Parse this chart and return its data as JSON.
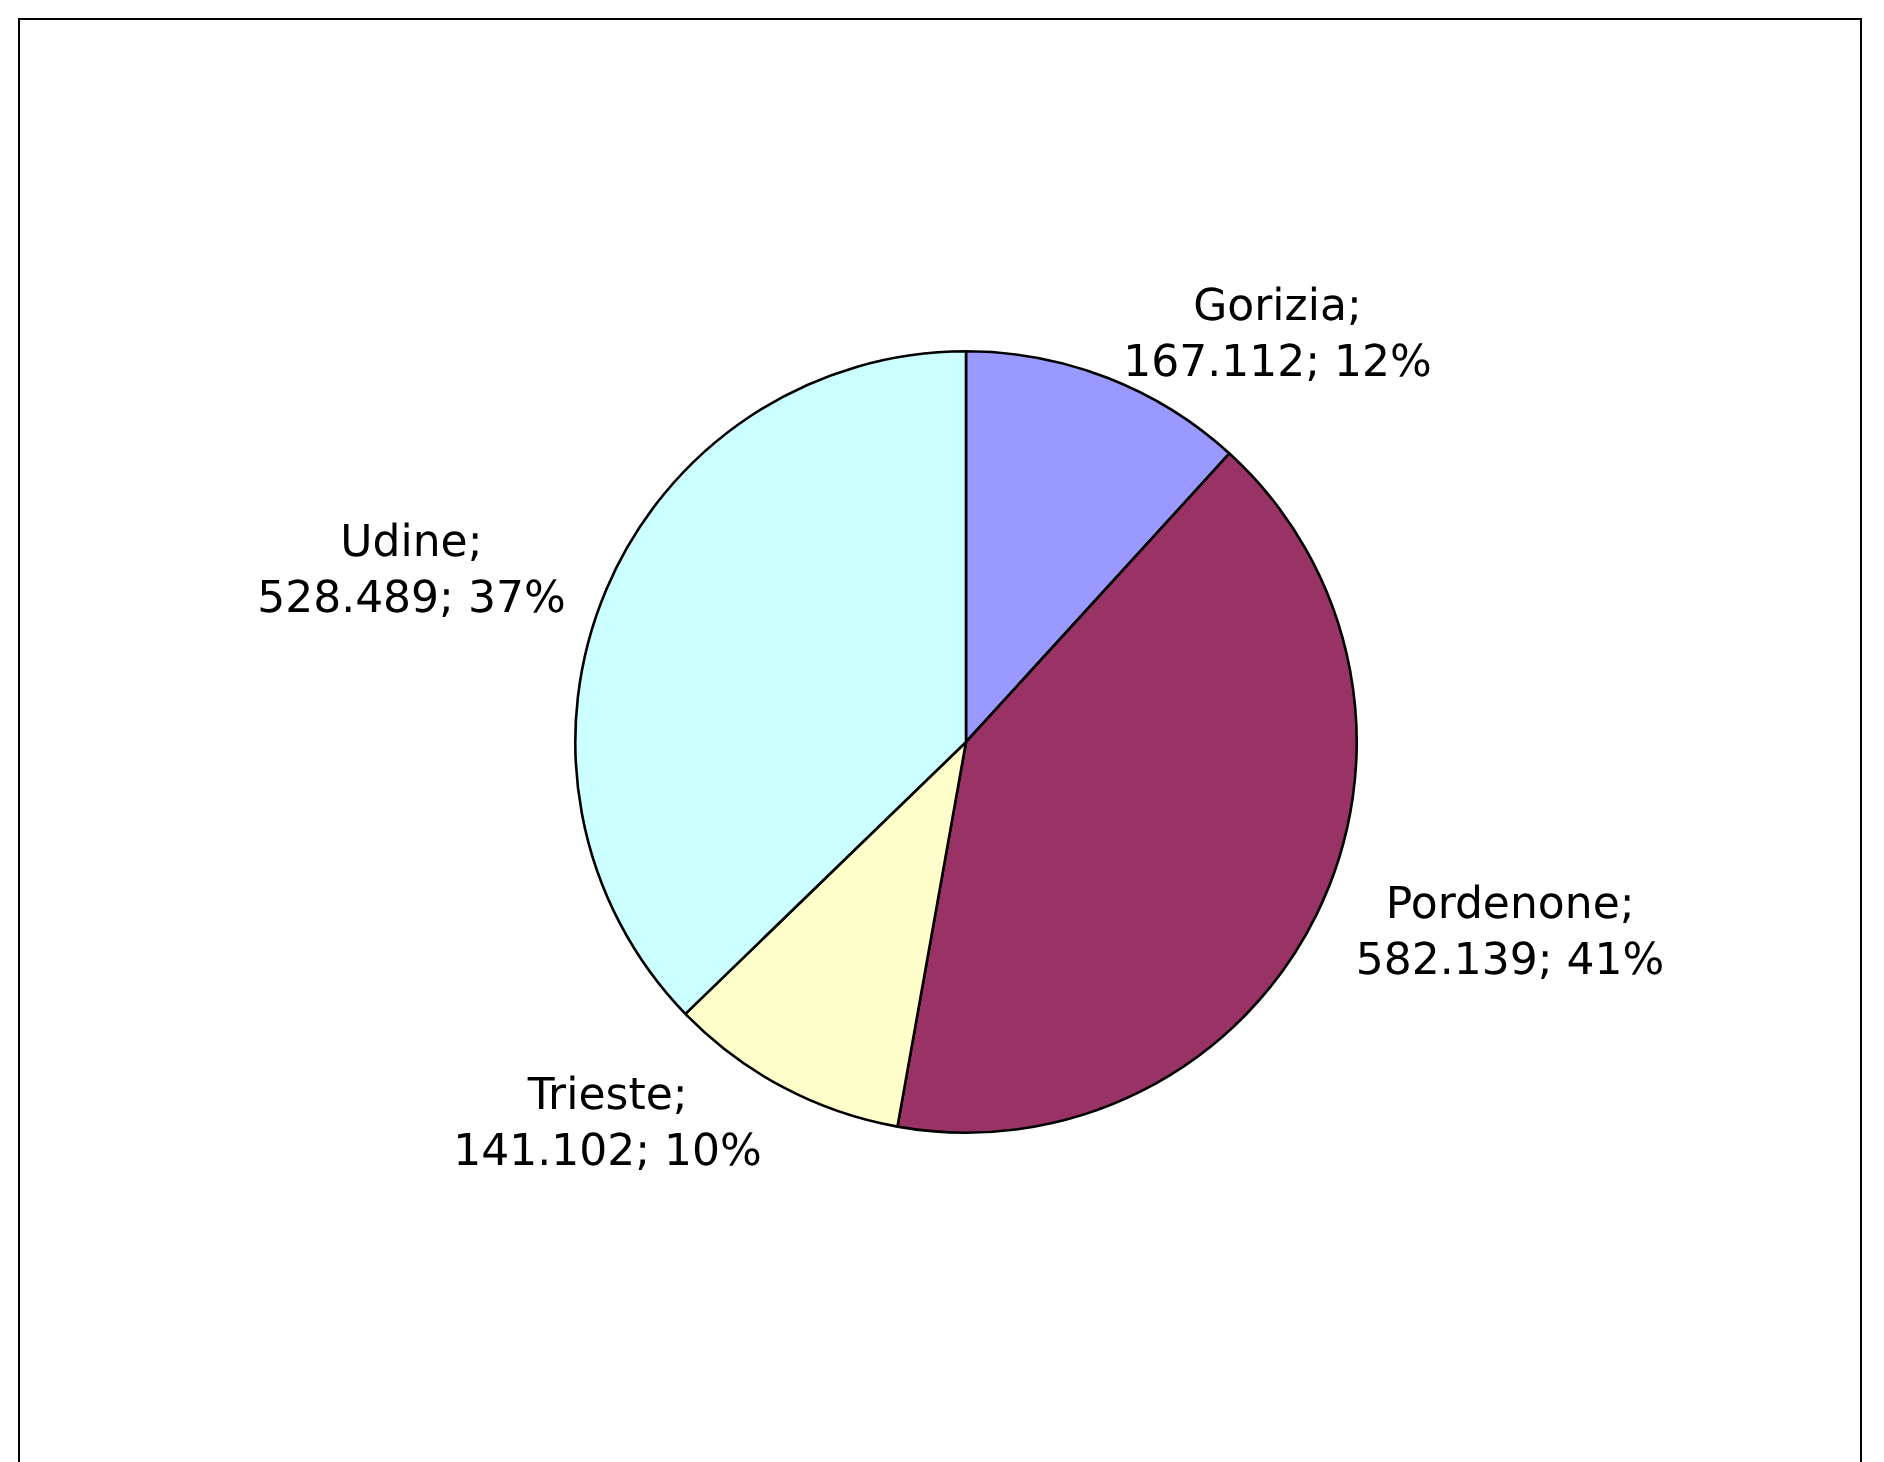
{
  "chart_data": {
    "type": "pie",
    "categories": [
      "Gorizia",
      "Pordenone",
      "Trieste",
      "Udine"
    ],
    "values": [
      167112,
      582139,
      141102,
      528489
    ],
    "value_labels": [
      "; 167.112; 12%",
      "; 582.139; 41%",
      "; 141.102; 10%",
      "; 528.489; 37%"
    ],
    "colors": [
      "#9999ff",
      "#993366",
      "#ffffcc",
      "#ccffff"
    ],
    "legend": false
  }
}
